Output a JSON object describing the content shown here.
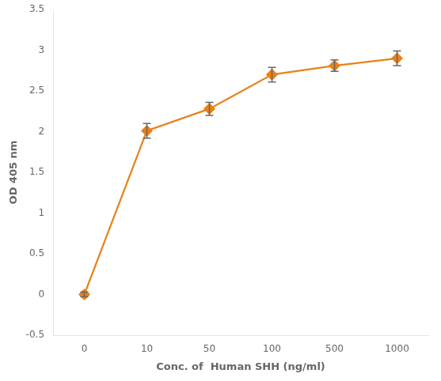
{
  "chart_data": {
    "type": "line",
    "xlabel": "Conc. of  Human SHH (ng/ml)",
    "ylabel": "OD 405 nm",
    "categories": [
      "0",
      "10",
      "50",
      "100",
      "500",
      "1000"
    ],
    "values": [
      0.0,
      2.01,
      2.28,
      2.7,
      2.81,
      2.9
    ],
    "yerr": [
      0.03,
      0.09,
      0.08,
      0.09,
      0.07,
      0.09
    ],
    "color": "#E8821A",
    "marker": "diamond",
    "ylim": [
      -0.5,
      3.5
    ],
    "yticks": [
      -0.5,
      0,
      0.5,
      1.0,
      1.5,
      2.0,
      2.5,
      3.0,
      3.5
    ],
    "grid": false
  }
}
